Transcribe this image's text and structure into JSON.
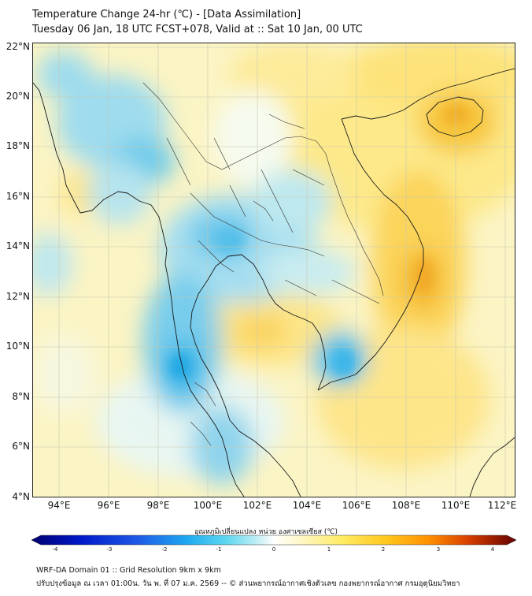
{
  "title_line1": "Temperature Change 24-hr (℃) - [Data Assimilation]",
  "title_line2": "Tuesday 06 Jan, 18 UTC FCST+078, Valid at :: Sat 10 Jan, 00 UTC",
  "lat_labels": [
    "22°N",
    "20°N",
    "18°N",
    "16°N",
    "14°N",
    "12°N",
    "10°N",
    "8°N",
    "6°N",
    "4°N"
  ],
  "lon_labels": [
    "94°E",
    "96°E",
    "98°E",
    "100°E",
    "102°E",
    "104°E",
    "106°E",
    "108°E",
    "110°E",
    "112°E"
  ],
  "colorbar": {
    "label": "อุณหภูมิเปลี่ยนแปลง หน่วย องศาเซลเซียส (℃)",
    "ticks": [
      "-4",
      "-3",
      "-2",
      "-1",
      "0",
      "1",
      "2",
      "3",
      "4"
    ],
    "min": -4,
    "max": 4,
    "colors": [
      "#00006e",
      "#0010c8",
      "#1e50e6",
      "#1ea0f0",
      "#3cd2f0",
      "#a0ebf5",
      "#ffffff",
      "#fff5b4",
      "#ffeb64",
      "#ffc81e",
      "#ff9600",
      "#e05000",
      "#a01400",
      "#640000"
    ]
  },
  "footer_line1": "WRF-DA Domain 01 :: Grid Resolution 9km x 9km",
  "footer_line2": "ปรับปรุงข้อมูล ณ เวลา 01:00น. วัน พ. ที่ 07 ม.ค. 2569 -- © ส่วนพยากรณ์อากาศเชิงตัวเลข กองพยากรณ์อากาศ กรมอุตุนิยมวิทยา"
}
